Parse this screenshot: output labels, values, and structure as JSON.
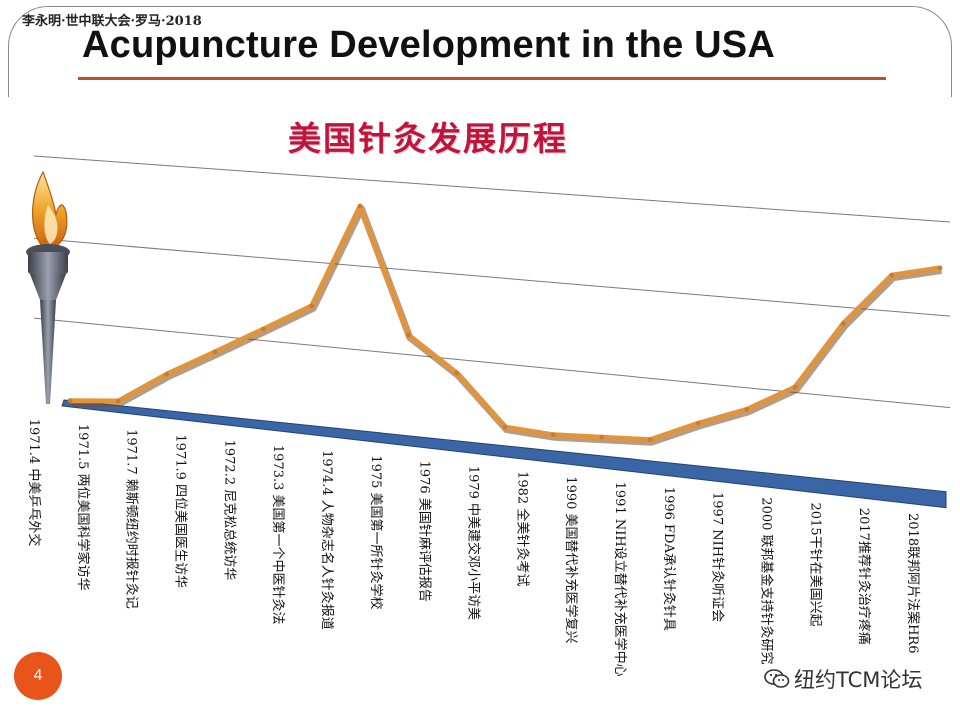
{
  "header": {
    "note": "李永明·世中联大会·罗马·2018",
    "title": "Acupuncture Development in the USA",
    "page_number": "4"
  },
  "watermark": {
    "text": "纽约TCM论坛",
    "icon": "wechat-icon"
  },
  "colors": {
    "accent": "#c0501e",
    "chart_title": "#c0143c",
    "line": "#e0953c",
    "base": "#3a66a8",
    "badge": "#e8541a"
  },
  "chart_data": {
    "type": "line",
    "title": "美国针灸发展历程",
    "xlabel": "",
    "ylabel": "",
    "grid": true,
    "legend": "none",
    "categories": [
      "1971.4 中美乒乓外交",
      "1971.5 两位美国科学家访华",
      "1971.7 赖斯顿纽约时报针灸记",
      "1971.9 四位美国医生访华",
      "1972.2 尼克松总统访华",
      "1973.3 美国第一个中医针灸法",
      "1974.4 人物杂志名人针灸报道",
      "1975 美国第一所针灸学校",
      "1976 美国针麻评估报告",
      "1979 中美建交邓小平访美",
      "1982 全美针灸考试",
      "1990 美国替代补充医学复兴",
      "1991 NIH设立替代补充医学中心",
      "1996 FDA承认针灸针具",
      "1997 NIH针灸听证会",
      "2000 联邦基金支持针灸研究",
      "2015干针在美国兴起",
      "2017推荐针灸治疗疼痛",
      "2018联邦阿片法案HR6"
    ],
    "values": [
      0,
      2,
      15,
      26,
      37,
      48,
      89,
      40,
      27,
      8,
      7,
      8,
      9,
      17,
      24,
      34,
      59,
      78,
      82
    ],
    "ylim": [
      0,
      100
    ]
  }
}
